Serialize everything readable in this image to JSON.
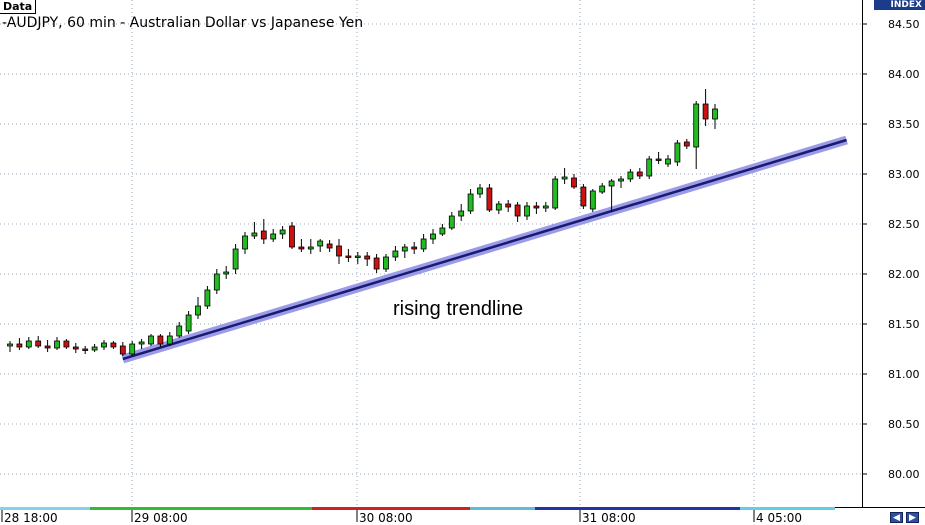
{
  "header": {
    "data_tab": "Data",
    "title": "-AUDJPY, 60 min - Australian Dollar vs Japanese Yen",
    "index_label": "INDEX"
  },
  "annotation": "rising trendline",
  "nav": {
    "prev_icon": "◀",
    "next_icon": "▶"
  },
  "colors": {
    "up": "#22bb22",
    "down": "#cc1111",
    "trendline": "#1a1a6e",
    "trendline_glow": "#9b9bea",
    "grid": "#9aa8bd"
  },
  "chart_data": {
    "type": "candlestick",
    "symbol": "AUDJPY",
    "timeframe": "60 min",
    "ylim": [
      79.75,
      84.7
    ],
    "grid": true,
    "y_ticks": [
      "84.50",
      "84.00",
      "83.50",
      "83.00",
      "82.50",
      "82.00",
      "81.50",
      "81.00",
      "80.50",
      "80.00"
    ],
    "x_ticks": [
      "28 18:00",
      "29 08:00",
      "30 08:00",
      "31 08:00",
      "4 05:00"
    ],
    "trendline": {
      "label": "rising trendline",
      "start": {
        "bar": 12,
        "y": 81.15
      },
      "end": {
        "bar": 89,
        "y": 83.34
      }
    },
    "candles": [
      {
        "o": 81.28,
        "h": 81.33,
        "l": 81.22,
        "c": 81.3
      },
      {
        "o": 81.3,
        "h": 81.36,
        "l": 81.24,
        "c": 81.27
      },
      {
        "o": 81.27,
        "h": 81.37,
        "l": 81.25,
        "c": 81.33
      },
      {
        "o": 81.33,
        "h": 81.38,
        "l": 81.26,
        "c": 81.28
      },
      {
        "o": 81.28,
        "h": 81.34,
        "l": 81.22,
        "c": 81.26
      },
      {
        "o": 81.26,
        "h": 81.37,
        "l": 81.24,
        "c": 81.33
      },
      {
        "o": 81.33,
        "h": 81.35,
        "l": 81.25,
        "c": 81.27
      },
      {
        "o": 81.27,
        "h": 81.31,
        "l": 81.21,
        "c": 81.25
      },
      {
        "o": 81.25,
        "h": 81.28,
        "l": 81.2,
        "c": 81.24
      },
      {
        "o": 81.24,
        "h": 81.3,
        "l": 81.22,
        "c": 81.27
      },
      {
        "o": 81.27,
        "h": 81.34,
        "l": 81.24,
        "c": 81.31
      },
      {
        "o": 81.31,
        "h": 81.33,
        "l": 81.25,
        "c": 81.27
      },
      {
        "o": 81.28,
        "h": 81.32,
        "l": 81.18,
        "c": 81.2
      },
      {
        "o": 81.2,
        "h": 81.33,
        "l": 81.18,
        "c": 81.3
      },
      {
        "o": 81.3,
        "h": 81.35,
        "l": 81.25,
        "c": 81.32
      },
      {
        "o": 81.3,
        "h": 81.4,
        "l": 81.28,
        "c": 81.38
      },
      {
        "o": 81.38,
        "h": 81.4,
        "l": 81.27,
        "c": 81.3
      },
      {
        "o": 81.3,
        "h": 81.42,
        "l": 81.28,
        "c": 81.38
      },
      {
        "o": 81.38,
        "h": 81.52,
        "l": 81.36,
        "c": 81.48
      },
      {
        "o": 81.43,
        "h": 81.63,
        "l": 81.4,
        "c": 81.59
      },
      {
        "o": 81.59,
        "h": 81.77,
        "l": 81.55,
        "c": 81.68
      },
      {
        "o": 81.68,
        "h": 81.88,
        "l": 81.65,
        "c": 81.84
      },
      {
        "o": 81.84,
        "h": 82.05,
        "l": 81.8,
        "c": 82.0
      },
      {
        "o": 82.0,
        "h": 82.08,
        "l": 81.95,
        "c": 82.02
      },
      {
        "o": 82.05,
        "h": 82.3,
        "l": 82.0,
        "c": 82.25
      },
      {
        "o": 82.25,
        "h": 82.42,
        "l": 82.2,
        "c": 82.38
      },
      {
        "o": 82.38,
        "h": 82.52,
        "l": 82.35,
        "c": 82.41
      },
      {
        "o": 82.43,
        "h": 82.55,
        "l": 82.3,
        "c": 82.35
      },
      {
        "o": 82.35,
        "h": 82.45,
        "l": 82.32,
        "c": 82.4
      },
      {
        "o": 82.4,
        "h": 82.48,
        "l": 82.35,
        "c": 82.44
      },
      {
        "o": 82.48,
        "h": 82.52,
        "l": 82.25,
        "c": 82.27
      },
      {
        "o": 82.27,
        "h": 82.35,
        "l": 82.22,
        "c": 82.25
      },
      {
        "o": 82.25,
        "h": 82.35,
        "l": 82.2,
        "c": 82.27
      },
      {
        "o": 82.28,
        "h": 82.35,
        "l": 82.22,
        "c": 82.33
      },
      {
        "o": 82.3,
        "h": 82.34,
        "l": 82.22,
        "c": 82.26
      },
      {
        "o": 82.28,
        "h": 82.35,
        "l": 82.1,
        "c": 82.18
      },
      {
        "o": 82.18,
        "h": 82.25,
        "l": 82.12,
        "c": 82.17
      },
      {
        "o": 82.17,
        "h": 82.22,
        "l": 82.1,
        "c": 82.18
      },
      {
        "o": 82.18,
        "h": 82.22,
        "l": 82.08,
        "c": 82.15
      },
      {
        "o": 82.16,
        "h": 82.2,
        "l": 82.01,
        "c": 82.05
      },
      {
        "o": 82.05,
        "h": 82.2,
        "l": 82.02,
        "c": 82.17
      },
      {
        "o": 82.17,
        "h": 82.28,
        "l": 82.13,
        "c": 82.23
      },
      {
        "o": 82.23,
        "h": 82.3,
        "l": 82.16,
        "c": 82.27
      },
      {
        "o": 82.27,
        "h": 82.32,
        "l": 82.2,
        "c": 82.25
      },
      {
        "o": 82.25,
        "h": 82.4,
        "l": 82.22,
        "c": 82.35
      },
      {
        "o": 82.35,
        "h": 82.45,
        "l": 82.3,
        "c": 82.4
      },
      {
        "o": 82.4,
        "h": 82.5,
        "l": 82.38,
        "c": 82.46
      },
      {
        "o": 82.46,
        "h": 82.62,
        "l": 82.44,
        "c": 82.58
      },
      {
        "o": 82.58,
        "h": 82.7,
        "l": 82.53,
        "c": 82.63
      },
      {
        "o": 82.63,
        "h": 82.85,
        "l": 82.6,
        "c": 82.8
      },
      {
        "o": 82.8,
        "h": 82.9,
        "l": 82.76,
        "c": 82.86
      },
      {
        "o": 82.86,
        "h": 82.9,
        "l": 82.62,
        "c": 82.64
      },
      {
        "o": 82.64,
        "h": 82.73,
        "l": 82.6,
        "c": 82.7
      },
      {
        "o": 82.7,
        "h": 82.74,
        "l": 82.62,
        "c": 82.67
      },
      {
        "o": 82.69,
        "h": 82.72,
        "l": 82.52,
        "c": 82.58
      },
      {
        "o": 82.58,
        "h": 82.72,
        "l": 82.54,
        "c": 82.68
      },
      {
        "o": 82.68,
        "h": 82.72,
        "l": 82.6,
        "c": 82.66
      },
      {
        "o": 82.66,
        "h": 82.72,
        "l": 82.62,
        "c": 82.68
      },
      {
        "o": 82.66,
        "h": 82.98,
        "l": 82.64,
        "c": 82.95
      },
      {
        "o": 82.95,
        "h": 83.06,
        "l": 82.9,
        "c": 82.97
      },
      {
        "o": 82.96,
        "h": 83.0,
        "l": 82.85,
        "c": 82.87
      },
      {
        "o": 82.87,
        "h": 82.9,
        "l": 82.65,
        "c": 82.68
      },
      {
        "o": 82.65,
        "h": 82.85,
        "l": 82.62,
        "c": 82.83
      },
      {
        "o": 82.82,
        "h": 82.91,
        "l": 82.8,
        "c": 82.88
      },
      {
        "o": 82.88,
        "h": 82.95,
        "l": 82.62,
        "c": 82.93
      },
      {
        "o": 82.93,
        "h": 82.98,
        "l": 82.86,
        "c": 82.95
      },
      {
        "o": 82.95,
        "h": 83.05,
        "l": 82.92,
        "c": 83.02
      },
      {
        "o": 83.02,
        "h": 83.06,
        "l": 82.95,
        "c": 82.98
      },
      {
        "o": 82.98,
        "h": 83.18,
        "l": 82.95,
        "c": 83.15
      },
      {
        "o": 83.15,
        "h": 83.22,
        "l": 83.1,
        "c": 83.14
      },
      {
        "o": 83.1,
        "h": 83.19,
        "l": 83.07,
        "c": 83.15
      },
      {
        "o": 83.12,
        "h": 83.34,
        "l": 83.08,
        "c": 83.31
      },
      {
        "o": 83.32,
        "h": 83.35,
        "l": 83.25,
        "c": 83.28
      },
      {
        "o": 83.27,
        "h": 83.73,
        "l": 83.05,
        "c": 83.7
      },
      {
        "o": 83.7,
        "h": 83.85,
        "l": 83.48,
        "c": 83.55
      },
      {
        "o": 83.55,
        "h": 83.7,
        "l": 83.45,
        "c": 83.65
      }
    ]
  }
}
